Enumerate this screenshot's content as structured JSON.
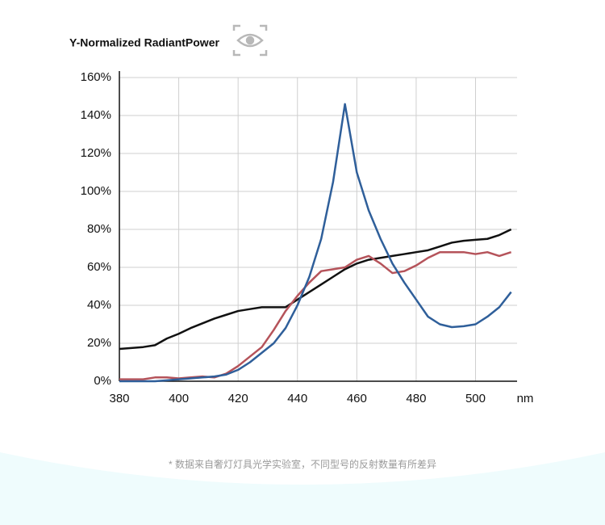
{
  "chart_data": {
    "type": "line",
    "title": "Y-Normalized RadiantPower",
    "x_unit": "nm",
    "footnote": "* 数据来自奢灯灯具光学实验室，不同型号的反射数量有所差异",
    "x": [
      380,
      384,
      388,
      392,
      396,
      400,
      404,
      408,
      412,
      416,
      420,
      424,
      428,
      432,
      436,
      440,
      444,
      448,
      452,
      456,
      460,
      464,
      468,
      472,
      476,
      480,
      484,
      488,
      492,
      496,
      500,
      504,
      508,
      512
    ],
    "series": [
      {
        "color": "#111111",
        "values": [
          17,
          17.5,
          18,
          19,
          22.5,
          25,
          28,
          30.5,
          33,
          35,
          37,
          38,
          39,
          39,
          39,
          43,
          47,
          51,
          55,
          59,
          62,
          64,
          65,
          66,
          67,
          68,
          69,
          71,
          73,
          74,
          74.5,
          75,
          77,
          80
        ]
      },
      {
        "color": "#b5535a",
        "values": [
          1,
          1,
          1,
          2,
          2,
          1.5,
          2,
          2.5,
          2,
          4,
          8,
          13,
          18,
          27,
          37,
          45,
          52,
          58,
          59,
          60,
          64,
          66,
          62,
          57,
          58,
          61,
          65,
          68,
          68,
          68,
          67,
          68,
          66,
          68
        ]
      },
      {
        "color": "#2f5f9a",
        "values": [
          0,
          0,
          0,
          0,
          0.5,
          1,
          1.5,
          2,
          2.5,
          3.5,
          6,
          10,
          15,
          20,
          28,
          40,
          55,
          75,
          105,
          146,
          110,
          90,
          75,
          62,
          52,
          43,
          34,
          30,
          28.5,
          29,
          30,
          34,
          39,
          47
        ]
      }
    ],
    "xlim": [
      380,
      514
    ],
    "ylim": [
      0,
      160
    ],
    "xticks": [
      380,
      400,
      420,
      440,
      460,
      480,
      500
    ],
    "yticks": [
      {
        "value": 0,
        "label": "0%"
      },
      {
        "value": 20,
        "label": "20%"
      },
      {
        "value": 40,
        "label": "40%"
      },
      {
        "value": 60,
        "label": "60%"
      },
      {
        "value": 80,
        "label": "80%"
      },
      {
        "value": 100,
        "label": "100%"
      },
      {
        "value": 120,
        "label": "120%"
      },
      {
        "value": 140,
        "label": "140%"
      },
      {
        "value": 160,
        "label": "160%"
      }
    ],
    "grid": true
  }
}
